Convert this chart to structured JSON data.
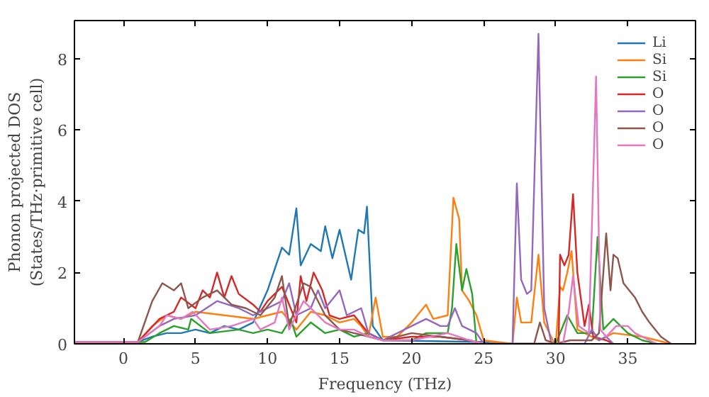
{
  "chart_data": {
    "type": "line",
    "xlabel": "Frequency (THz)",
    "ylabel": "Phonon projected DOS\n(States/THz·primitive cell)",
    "xlim": [
      -3.4,
      39.7
    ],
    "ylim": [
      0,
      9.07
    ],
    "xticks": [
      0,
      5,
      10,
      15,
      20,
      25,
      30,
      35
    ],
    "yticks": [
      0,
      2,
      4,
      6,
      8
    ],
    "legend": "top right",
    "grid": false,
    "series": [
      {
        "name": "Li",
        "color": "#1f77b4",
        "x": [
          -3.4,
          0,
          1,
          2,
          3,
          4,
          5,
          6,
          7,
          8,
          9,
          10,
          11,
          11.5,
          12,
          12.3,
          13,
          13.7,
          14,
          14.5,
          15,
          15.8,
          16.3,
          16.7,
          16.9,
          17.3,
          18,
          25,
          26
        ],
        "values": [
          0.05,
          0.05,
          0.05,
          0.2,
          0.3,
          0.3,
          0.4,
          0.3,
          0.5,
          0.4,
          0.6,
          1.5,
          2.7,
          2.5,
          3.8,
          2.2,
          2.8,
          2.6,
          3.3,
          2.4,
          3.2,
          1.8,
          3.2,
          3.1,
          3.85,
          0.5,
          0.1,
          0.05,
          0
        ]
      },
      {
        "name": "Si",
        "color": "#ff7f0e",
        "x": [
          -3.4,
          0,
          1,
          2,
          3,
          4,
          5,
          7,
          9,
          10,
          11,
          12,
          13,
          14,
          15,
          16,
          16.5,
          17,
          17.5,
          18,
          19,
          20,
          21,
          21.5,
          22.5,
          22.9,
          23.3,
          23.5,
          24,
          24.5,
          25,
          27,
          27.3,
          27.6,
          28.3,
          28.8,
          29.2,
          29.8,
          30,
          30.3,
          30.5,
          30.8,
          31.1,
          31.5,
          32,
          33,
          34,
          36,
          37.5,
          38
        ],
        "values": [
          0.05,
          0.05,
          0.05,
          0.5,
          0.8,
          0.7,
          0.9,
          0.8,
          0.7,
          0.8,
          0.9,
          0.4,
          0.9,
          0.8,
          0.6,
          0.7,
          0.5,
          0.2,
          1.3,
          0.2,
          0.2,
          0.6,
          1.1,
          0.7,
          0.8,
          4.1,
          3.5,
          1.5,
          1.2,
          0.8,
          0.1,
          0,
          1.3,
          0.6,
          0.6,
          2.5,
          0.6,
          0.1,
          0,
          1.6,
          1.5,
          2.0,
          2.6,
          0.4,
          0.3,
          0.1,
          0.3,
          0.2,
          0.05,
          0
        ]
      },
      {
        "name": "Si",
        "color": "#2ca02c",
        "x": [
          -3.4,
          0,
          1.5,
          2.5,
          3.5,
          4.5,
          4.7,
          6,
          8,
          9,
          10,
          11,
          11.6,
          12,
          13,
          14,
          15,
          16,
          17,
          18,
          20,
          21,
          22.5,
          22.8,
          23.1,
          23.5,
          23.8,
          24.2,
          24.5,
          30,
          30.8,
          31.5,
          32.5,
          32.9,
          33.3,
          34,
          35,
          36,
          37
        ],
        "values": [
          0.05,
          0.05,
          0.05,
          0.3,
          0.5,
          0.4,
          0.7,
          0.3,
          0.4,
          0.3,
          0.4,
          0.3,
          0.7,
          0.2,
          0.6,
          0.3,
          0.4,
          0.2,
          0.3,
          0.1,
          0.1,
          0.3,
          0.3,
          1.0,
          2.8,
          1.5,
          2.1,
          1.4,
          0,
          0,
          0.8,
          0.3,
          0.3,
          3.0,
          0.4,
          0.7,
          0.3,
          0.1,
          0
        ]
      },
      {
        "name": "O",
        "color": "#d62728",
        "x": [
          -3.4,
          0,
          1,
          2.5,
          3.5,
          4,
          5,
          5.5,
          6,
          6.5,
          7,
          7.5,
          8,
          9,
          9.5,
          10,
          11,
          12,
          12.3,
          12.7,
          13.2,
          13.8,
          14.3,
          15,
          16,
          17,
          18,
          20,
          22,
          24,
          25,
          30.2,
          30.3,
          30.6,
          30.9,
          31.2,
          31.5,
          32,
          32.3,
          32.6,
          33.5,
          34
        ],
        "values": [
          0.05,
          0.05,
          0.05,
          0.7,
          0.9,
          1.3,
          1.0,
          1.5,
          1.3,
          2.0,
          1.3,
          1.9,
          1.4,
          1.1,
          0.9,
          1.2,
          1.6,
          0.6,
          1.9,
          1.2,
          2.0,
          1.5,
          0.8,
          0.7,
          0.8,
          0.3,
          0.1,
          0.2,
          0.2,
          0.1,
          0,
          0,
          2.5,
          2.2,
          2.5,
          4.2,
          2.0,
          0.5,
          1.1,
          0.2,
          0.1,
          0
        ]
      },
      {
        "name": "O",
        "color": "#9467bd",
        "x": [
          -3.4,
          0,
          1,
          2.5,
          3.5,
          5,
          6.5,
          8,
          9,
          10,
          11,
          11.5,
          12,
          13,
          13.5,
          14,
          15,
          15.5,
          16.5,
          17,
          18,
          20,
          21,
          22,
          22.5,
          23,
          23.5,
          24.5,
          25,
          27,
          27.3,
          27.6,
          28,
          28.3,
          28.8,
          29.2,
          29.7,
          32,
          32.5,
          33,
          33.5,
          34
        ],
        "values": [
          0.05,
          0.05,
          0.05,
          0.5,
          0.7,
          0.8,
          1.2,
          1.0,
          0.8,
          1.0,
          1.2,
          1.7,
          0.8,
          1.0,
          1.5,
          1.0,
          1.5,
          0.8,
          1.0,
          0.3,
          0.1,
          0.5,
          0.7,
          0.5,
          0.5,
          1.0,
          0.5,
          0.3,
          0,
          0,
          4.5,
          1.8,
          1.4,
          1.5,
          8.7,
          1.0,
          0,
          0,
          0.4,
          0.1,
          0.2,
          0
        ]
      },
      {
        "name": "O",
        "color": "#8c564b",
        "x": [
          -3.4,
          0,
          1,
          2,
          2.7,
          3.5,
          4,
          4.5,
          5.5,
          6.5,
          7.5,
          8.5,
          9.5,
          10.5,
          11,
          11.5,
          12.5,
          13,
          14,
          15,
          16,
          17,
          18,
          20,
          22,
          24,
          25,
          28.5,
          28.9,
          29.3,
          30,
          31,
          32.5,
          33,
          33.5,
          33.8,
          34,
          34.3,
          34.7,
          35.5,
          36,
          36.5,
          37.3,
          38
        ],
        "values": [
          0.05,
          0.05,
          0.05,
          1.2,
          1.7,
          1.5,
          1.7,
          1.0,
          1.3,
          1.5,
          1.1,
          1.0,
          0.8,
          1.3,
          1.9,
          0.5,
          1.7,
          1.6,
          0.8,
          0.4,
          0.3,
          0.2,
          0.1,
          0.3,
          0.2,
          0.1,
          0,
          0,
          0.6,
          0.1,
          0,
          0.1,
          0.1,
          0.3,
          3.1,
          1.5,
          2.5,
          2.4,
          1.7,
          1.3,
          0.9,
          0.6,
          0.2,
          0
        ]
      },
      {
        "name": "O",
        "color": "#e377c2",
        "x": [
          -3.4,
          0,
          1,
          2.5,
          3,
          4,
          4.8,
          6,
          7.5,
          9,
          9.5,
          10.5,
          11,
          11.5,
          12.5,
          13,
          14,
          15,
          16,
          17,
          18,
          20,
          22.5,
          24,
          25,
          30.5,
          30.9,
          31.2,
          31.6,
          32.3,
          32.8,
          33.1,
          33.5,
          34.2,
          35,
          35.5,
          36.5,
          37
        ],
        "values": [
          0.05,
          0.05,
          0.05,
          0.5,
          0.8,
          0.7,
          0.9,
          0.4,
          0.5,
          0.7,
          0.4,
          0.6,
          1.3,
          0.4,
          1.2,
          1.0,
          0.6,
          0.4,
          0.4,
          0.2,
          0.1,
          0.1,
          0.3,
          0.1,
          0,
          0,
          0.9,
          1.9,
          0.5,
          0.3,
          7.5,
          0.4,
          0.2,
          0.5,
          0.5,
          0.3,
          0.1,
          0
        ]
      }
    ]
  }
}
